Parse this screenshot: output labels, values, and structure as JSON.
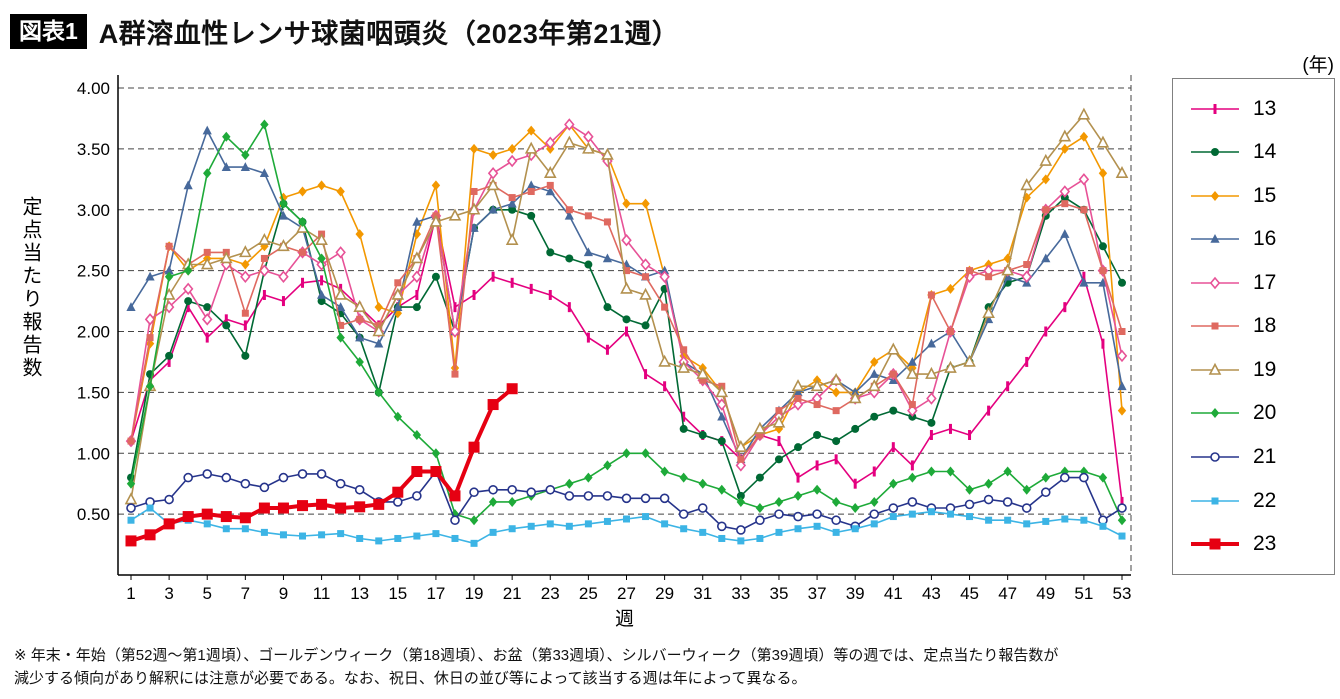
{
  "header": {
    "badge": "図表1",
    "title": "A群溶血性レンサ球菌咽頭炎（2023年第21週）"
  },
  "legend": {
    "unit": "(年)"
  },
  "footnote": {
    "line1": "※ 年末・年始（第52週～第1週頃）、ゴールデンウィーク（第18週頃）、お盆（第33週頃）、シルバーウィーク（第39週頃）等の週では、定点当たり報告数が",
    "line2": "減少する傾向があり解釈には注意が必要である。なお、祝日、休日の並び等によって該当する週は年によって異なる。"
  },
  "chart_data": {
    "type": "line",
    "title": "A群溶血性レンサ球菌咽頭炎（2023年第21週）",
    "xlabel": "週",
    "ylabel": "定点当たり報告数",
    "xlim": [
      1,
      53
    ],
    "ylim": [
      0,
      4.0
    ],
    "grid": "horizontal-dashed",
    "legend_position": "right",
    "y_ticks": [
      "0.50",
      "1.00",
      "1.50",
      "2.00",
      "2.50",
      "3.00",
      "3.50",
      "4.00"
    ],
    "x_ticks": [
      1,
      3,
      5,
      7,
      9,
      11,
      13,
      15,
      17,
      19,
      21,
      23,
      25,
      27,
      29,
      31,
      33,
      35,
      37,
      39,
      41,
      43,
      45,
      47,
      49,
      51,
      53
    ],
    "series": [
      {
        "name": "13",
        "color": "#e4007f",
        "marker": "vtick",
        "line_width": 1.6,
        "values": [
          1.1,
          1.6,
          1.75,
          2.2,
          1.95,
          2.1,
          2.05,
          2.3,
          2.25,
          2.4,
          2.42,
          2.35,
          2.2,
          2.05,
          2.2,
          2.3,
          2.95,
          2.2,
          2.3,
          2.45,
          2.4,
          2.35,
          2.3,
          2.2,
          1.95,
          1.85,
          2.0,
          1.65,
          1.55,
          1.3,
          1.15,
          1.1,
          0.95,
          1.15,
          1.1,
          0.8,
          0.9,
          0.95,
          0.75,
          0.85,
          1.05,
          0.9,
          1.15,
          1.2,
          1.15,
          1.35,
          1.55,
          1.75,
          2.0,
          2.2,
          2.45,
          1.9,
          0.6
        ]
      },
      {
        "name": "14",
        "color": "#006934",
        "marker": "circle",
        "line_width": 1.6,
        "values": [
          0.8,
          1.65,
          1.8,
          2.25,
          2.2,
          2.05,
          1.8,
          2.5,
          3.05,
          2.9,
          2.25,
          2.15,
          1.95,
          1.5,
          2.2,
          2.2,
          2.45,
          2.0,
          2.85,
          3.0,
          3.0,
          2.95,
          2.65,
          2.6,
          2.55,
          2.2,
          2.1,
          2.05,
          2.35,
          1.2,
          1.15,
          1.1,
          0.65,
          0.8,
          0.95,
          1.05,
          1.15,
          1.1,
          1.2,
          1.3,
          1.35,
          1.3,
          1.25,
          1.7,
          1.75,
          2.2,
          2.4,
          2.45,
          2.95,
          3.1,
          3.0,
          2.7,
          2.4
        ]
      },
      {
        "name": "15",
        "color": "#f39800",
        "marker": "diamond",
        "line_width": 1.6,
        "values": [
          1.1,
          1.9,
          2.7,
          2.5,
          2.6,
          2.6,
          2.55,
          2.7,
          3.1,
          3.15,
          3.2,
          3.15,
          2.8,
          2.2,
          2.15,
          2.8,
          3.2,
          1.7,
          3.5,
          3.45,
          3.5,
          3.65,
          3.5,
          3.7,
          3.5,
          3.45,
          3.05,
          3.05,
          2.45,
          1.8,
          1.7,
          1.5,
          1.05,
          1.15,
          1.2,
          1.5,
          1.6,
          1.5,
          1.5,
          1.75,
          1.85,
          1.7,
          2.3,
          2.35,
          2.5,
          2.55,
          2.6,
          3.1,
          3.25,
          3.5,
          3.6,
          3.3,
          1.35
        ]
      },
      {
        "name": "16",
        "color": "#47699b",
        "marker": "triangle",
        "line_width": 1.6,
        "values": [
          2.2,
          2.45,
          2.5,
          3.2,
          3.65,
          3.35,
          3.35,
          3.3,
          2.95,
          2.85,
          2.3,
          2.2,
          1.95,
          1.9,
          2.2,
          2.9,
          2.95,
          2.0,
          2.85,
          3.0,
          3.05,
          3.2,
          3.15,
          2.95,
          2.65,
          2.6,
          2.55,
          2.45,
          2.5,
          1.75,
          1.65,
          1.3,
          0.95,
          1.2,
          1.35,
          1.5,
          1.55,
          1.6,
          1.5,
          1.65,
          1.6,
          1.75,
          1.9,
          2.0,
          1.75,
          2.1,
          2.45,
          2.4,
          2.6,
          2.8,
          2.4,
          2.4,
          1.55
        ]
      },
      {
        "name": "17",
        "color": "#e75297",
        "marker": "diamond-open",
        "line_width": 1.6,
        "values": [
          1.1,
          2.1,
          2.2,
          2.35,
          2.1,
          2.55,
          2.45,
          2.5,
          2.45,
          2.65,
          2.55,
          2.65,
          2.1,
          2.0,
          2.3,
          2.45,
          2.95,
          2.0,
          3.0,
          3.3,
          3.4,
          3.45,
          3.55,
          3.7,
          3.6,
          3.4,
          2.75,
          2.55,
          2.45,
          1.75,
          1.6,
          1.4,
          0.9,
          1.15,
          1.3,
          1.4,
          1.45,
          1.6,
          1.45,
          1.5,
          1.65,
          1.35,
          1.45,
          2.0,
          2.45,
          2.5,
          2.5,
          2.45,
          3.0,
          3.15,
          3.25,
          2.5,
          1.8
        ]
      },
      {
        "name": "18",
        "color": "#df6960",
        "marker": "square",
        "line_width": 1.6,
        "values": [
          1.1,
          1.95,
          2.7,
          2.55,
          2.65,
          2.65,
          2.15,
          2.6,
          2.7,
          2.65,
          2.8,
          2.05,
          2.1,
          2.05,
          2.4,
          2.6,
          2.95,
          1.65,
          3.15,
          3.2,
          3.1,
          3.15,
          3.2,
          3.0,
          2.95,
          2.9,
          2.5,
          2.45,
          2.2,
          1.85,
          1.6,
          1.55,
          0.95,
          1.15,
          1.35,
          1.45,
          1.4,
          1.35,
          1.45,
          1.55,
          1.65,
          1.4,
          2.3,
          2.0,
          2.5,
          2.45,
          2.5,
          2.55,
          3.0,
          3.05,
          3.0,
          2.5,
          2.0
        ]
      },
      {
        "name": "19",
        "color": "#b3914f",
        "marker": "triangle-open",
        "line_width": 1.6,
        "values": [
          0.62,
          1.55,
          2.3,
          2.55,
          2.55,
          2.6,
          2.65,
          2.75,
          2.7,
          2.85,
          2.75,
          2.3,
          2.2,
          2.0,
          2.3,
          2.6,
          2.9,
          2.95,
          3.0,
          3.2,
          2.75,
          3.5,
          3.3,
          3.55,
          3.5,
          3.45,
          2.35,
          2.3,
          1.75,
          1.7,
          1.65,
          1.5,
          1.05,
          1.2,
          1.25,
          1.55,
          1.55,
          1.6,
          1.45,
          1.55,
          1.85,
          1.65,
          1.65,
          1.7,
          1.75,
          2.15,
          2.5,
          3.2,
          3.4,
          3.6,
          3.78,
          3.55,
          3.3
        ]
      },
      {
        "name": "20",
        "color": "#1eaa39",
        "marker": "diamond",
        "line_width": 1.6,
        "values": [
          0.75,
          1.55,
          2.45,
          2.5,
          3.3,
          3.6,
          3.45,
          3.7,
          3.05,
          2.9,
          2.6,
          1.95,
          1.75,
          1.5,
          1.3,
          1.15,
          1.0,
          0.5,
          0.45,
          0.6,
          0.6,
          0.65,
          0.7,
          0.75,
          0.8,
          0.9,
          1.0,
          1.0,
          0.85,
          0.8,
          0.75,
          0.7,
          0.6,
          0.55,
          0.6,
          0.65,
          0.7,
          0.6,
          0.55,
          0.6,
          0.75,
          0.8,
          0.85,
          0.85,
          0.7,
          0.75,
          0.85,
          0.7,
          0.8,
          0.85,
          0.85,
          0.8,
          0.45
        ]
      },
      {
        "name": "21",
        "color": "#26348b",
        "marker": "circle-open",
        "line_width": 1.6,
        "values": [
          0.55,
          0.6,
          0.62,
          0.8,
          0.83,
          0.8,
          0.75,
          0.72,
          0.8,
          0.83,
          0.83,
          0.75,
          0.7,
          0.6,
          0.6,
          0.65,
          0.85,
          0.45,
          0.68,
          0.7,
          0.7,
          0.68,
          0.7,
          0.65,
          0.65,
          0.65,
          0.63,
          0.63,
          0.63,
          0.5,
          0.55,
          0.4,
          0.37,
          0.45,
          0.5,
          0.48,
          0.5,
          0.45,
          0.4,
          0.5,
          0.55,
          0.6,
          0.55,
          0.55,
          0.58,
          0.62,
          0.6,
          0.55,
          0.68,
          0.8,
          0.8,
          0.45,
          0.55
        ]
      },
      {
        "name": "22",
        "color": "#3cb4e5",
        "marker": "square",
        "line_width": 1.6,
        "values": [
          0.45,
          0.55,
          0.42,
          0.45,
          0.42,
          0.38,
          0.38,
          0.35,
          0.33,
          0.32,
          0.33,
          0.34,
          0.3,
          0.28,
          0.3,
          0.32,
          0.34,
          0.3,
          0.26,
          0.35,
          0.38,
          0.4,
          0.42,
          0.4,
          0.42,
          0.44,
          0.46,
          0.48,
          0.42,
          0.38,
          0.35,
          0.3,
          0.28,
          0.3,
          0.35,
          0.38,
          0.4,
          0.35,
          0.38,
          0.42,
          0.48,
          0.5,
          0.52,
          0.5,
          0.48,
          0.45,
          0.45,
          0.42,
          0.44,
          0.46,
          0.45,
          0.4,
          0.32
        ]
      },
      {
        "name": "23",
        "color": "#e60012",
        "marker": "square-big",
        "line_width": 4,
        "values": [
          0.28,
          0.33,
          0.42,
          0.48,
          0.5,
          0.48,
          0.47,
          0.55,
          0.55,
          0.57,
          0.58,
          0.55,
          0.56,
          0.58,
          0.68,
          0.85,
          0.85,
          0.65,
          1.05,
          1.4,
          1.53
        ]
      }
    ]
  }
}
